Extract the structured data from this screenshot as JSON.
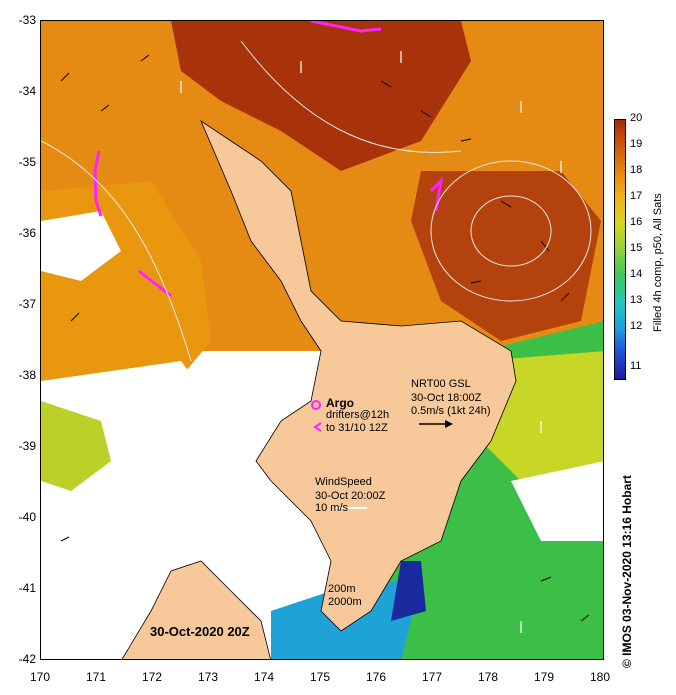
{
  "map": {
    "y_ticks": [
      "-33",
      "-34",
      "-35",
      "-36",
      "-37",
      "-38",
      "-39",
      "-40",
      "-41",
      "-42"
    ],
    "x_ticks": [
      "170",
      "171",
      "172",
      "173",
      "174",
      "175",
      "176",
      "177",
      "178",
      "179",
      "180"
    ],
    "lat_range": [
      -42,
      -33
    ],
    "lon_range": [
      170,
      180
    ]
  },
  "colorbar": {
    "ticks": [
      "20",
      "19",
      "18",
      "17",
      "16",
      "15",
      "14",
      "13",
      "12",
      "11"
    ],
    "title": "Filled 4h comp, p50, All Sats",
    "colors": [
      "#1a1a9e",
      "#1f4fd6",
      "#1aa3e0",
      "#22c9b8",
      "#3cc85a",
      "#8fd23a",
      "#d7d51c",
      "#f0b21b",
      "#e8850f",
      "#d2560a",
      "#a82a06"
    ]
  },
  "legend": {
    "argo_label": "Argo",
    "drifters_line1": "drifters@12h",
    "drifters_line2": "to 31/10 12Z",
    "nrt_line1": "NRT00 GSL",
    "nrt_line2": "30-Oct 18:00Z",
    "nrt_line3": "0.5m/s (1kt 24h)",
    "wind_line1": "WindSpeed",
    "wind_line2": "30-Oct 20:00Z",
    "wind_line3": "10 m/s",
    "depth_line1": "200m",
    "depth_line2": "2000m"
  },
  "stamp": "30-Oct-2020 20Z",
  "credit": "© IMOS 03-Nov-2020 13:16 Hobart",
  "colors": {
    "land": "#f6c89a",
    "warm": "#c85a0c",
    "hot": "#9e2a06",
    "mid": "#f0a020",
    "cool": "#4cc24a",
    "cold": "#1c3ca8"
  }
}
